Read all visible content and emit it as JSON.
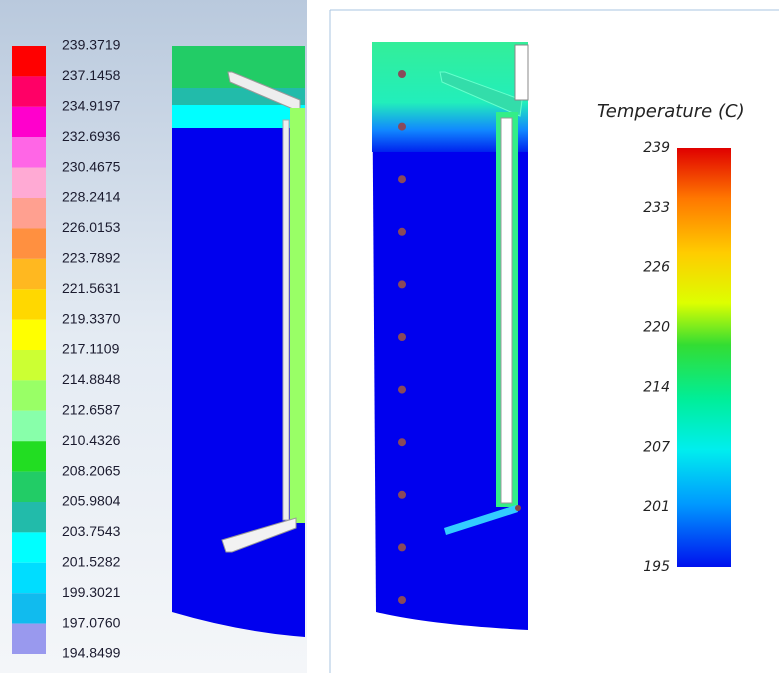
{
  "left_panel": {
    "legend": {
      "labels": [
        "239.3719",
        "237.1458",
        "234.9197",
        "232.6936",
        "230.4675",
        "228.2414",
        "226.0153",
        "223.7892",
        "221.5631",
        "219.3370",
        "217.1109",
        "214.8848",
        "212.6587",
        "210.4326",
        "208.2065",
        "205.9804",
        "203.7543",
        "201.5282",
        "199.3021",
        "197.0760",
        "194.8499"
      ],
      "colors": [
        "#ff0000",
        "#ff0066",
        "#ff00cc",
        "#ff66e6",
        "#ffaad4",
        "#ffa090",
        "#ff9040",
        "#ffb820",
        "#ffd800",
        "#ffff00",
        "#ccff33",
        "#99ff66",
        "#88ffaa",
        "#22dd22",
        "#22cc66",
        "#22bbaa",
        "#00ffff",
        "#00ddff",
        "#11bbee",
        "#9999ee",
        "#0000ee"
      ]
    }
  },
  "right_panel": {
    "title": "Temperature (C)",
    "legend": {
      "labels": [
        "239",
        "233",
        "226",
        "220",
        "214",
        "207",
        "201",
        "195"
      ]
    }
  }
}
